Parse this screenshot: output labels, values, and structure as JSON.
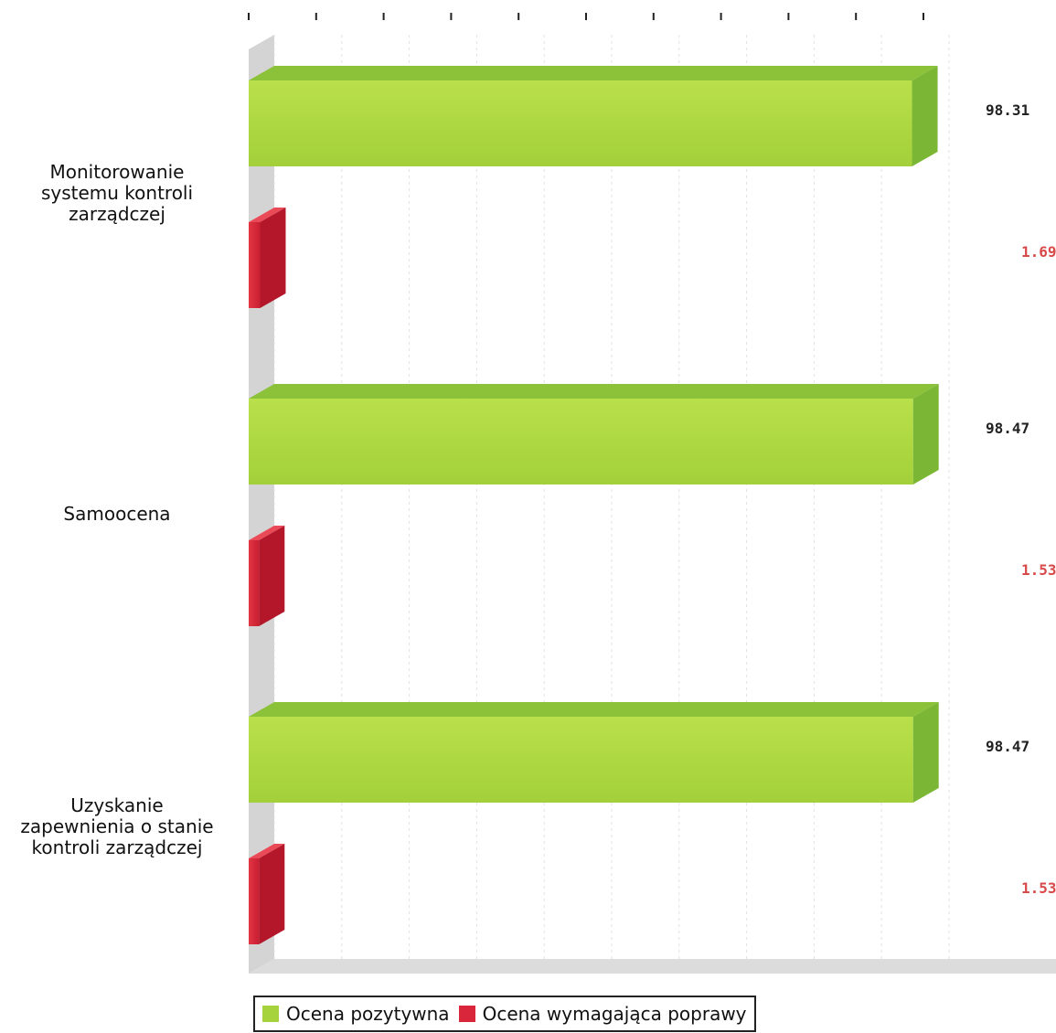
{
  "chart_data": {
    "type": "bar",
    "orientation": "horizontal",
    "style": "3d",
    "categories": [
      "Monitorowanie\nsystemu kontroli\nzarządczej",
      "Samoocena",
      "Uzyskanie\nzapewnienia o stanie\nkontroli zarządczej"
    ],
    "series": [
      {
        "name": "Ocena pozytywna",
        "color": "#a6d23c",
        "values": [
          98.31,
          98.47,
          98.47
        ],
        "labels": [
          "98.31",
          "98.47",
          "98.47"
        ]
      },
      {
        "name": "Ocena wymagająca poprawy",
        "color": "#d9263a",
        "values": [
          1.69,
          1.53,
          1.53
        ],
        "labels": [
          "1.69",
          "1.53",
          "1.53"
        ]
      }
    ],
    "xlim": [
      0,
      100
    ],
    "grid": true,
    "legend": "bottom-left"
  }
}
